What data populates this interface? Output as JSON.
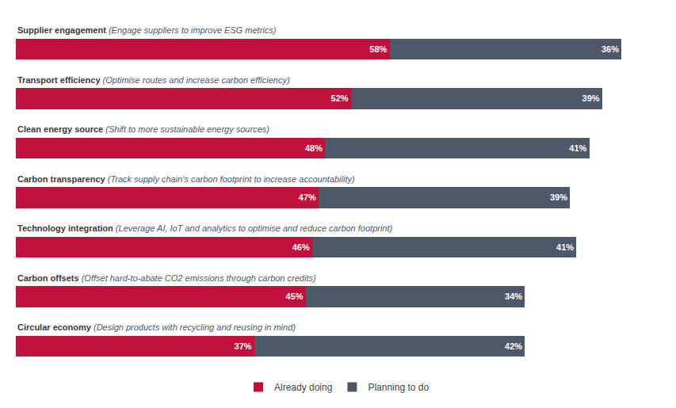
{
  "chart_data": {
    "type": "bar",
    "orientation": "horizontal",
    "stacked": true,
    "categories": [
      "Supplier engagement",
      "Transport efficiency",
      "Clean energy source",
      "Carbon transparency",
      "Technology integration",
      "Carbon offsets",
      "Circular economy"
    ],
    "annotations": [
      "(Engage suppliers to improve ESG metrics)",
      "(Optimise routes and increase carbon efficiency)",
      "(Shift to more sustainable energy sources)",
      "(Track supply chain's carbon footprint to increase accountability)",
      "(Leverage AI, IoT and analytics to optimise and reduce carbon footprint)",
      "(Offset hard-to-abate CO2 emissions through carbon credits)",
      "(Design products with recycling and reusing in mind)"
    ],
    "series": [
      {
        "name": "Already doing",
        "color": "#c0103c",
        "values": [
          58,
          52,
          48,
          47,
          46,
          45,
          37
        ],
        "value_labels": [
          "58%",
          "52%",
          "48%",
          "47%",
          "46%",
          "45%",
          "37%"
        ]
      },
      {
        "name": "Planning to do",
        "color": "#4d5869",
        "values": [
          36,
          39,
          41,
          39,
          41,
          34,
          42
        ],
        "value_labels": [
          "36%",
          "39%",
          "41%",
          "39%",
          "41%",
          "34%",
          "42%"
        ]
      }
    ],
    "xlim": [
      0,
      100
    ],
    "data_labels": true,
    "tick_labels": false,
    "grid": false,
    "legend": "bottom"
  }
}
